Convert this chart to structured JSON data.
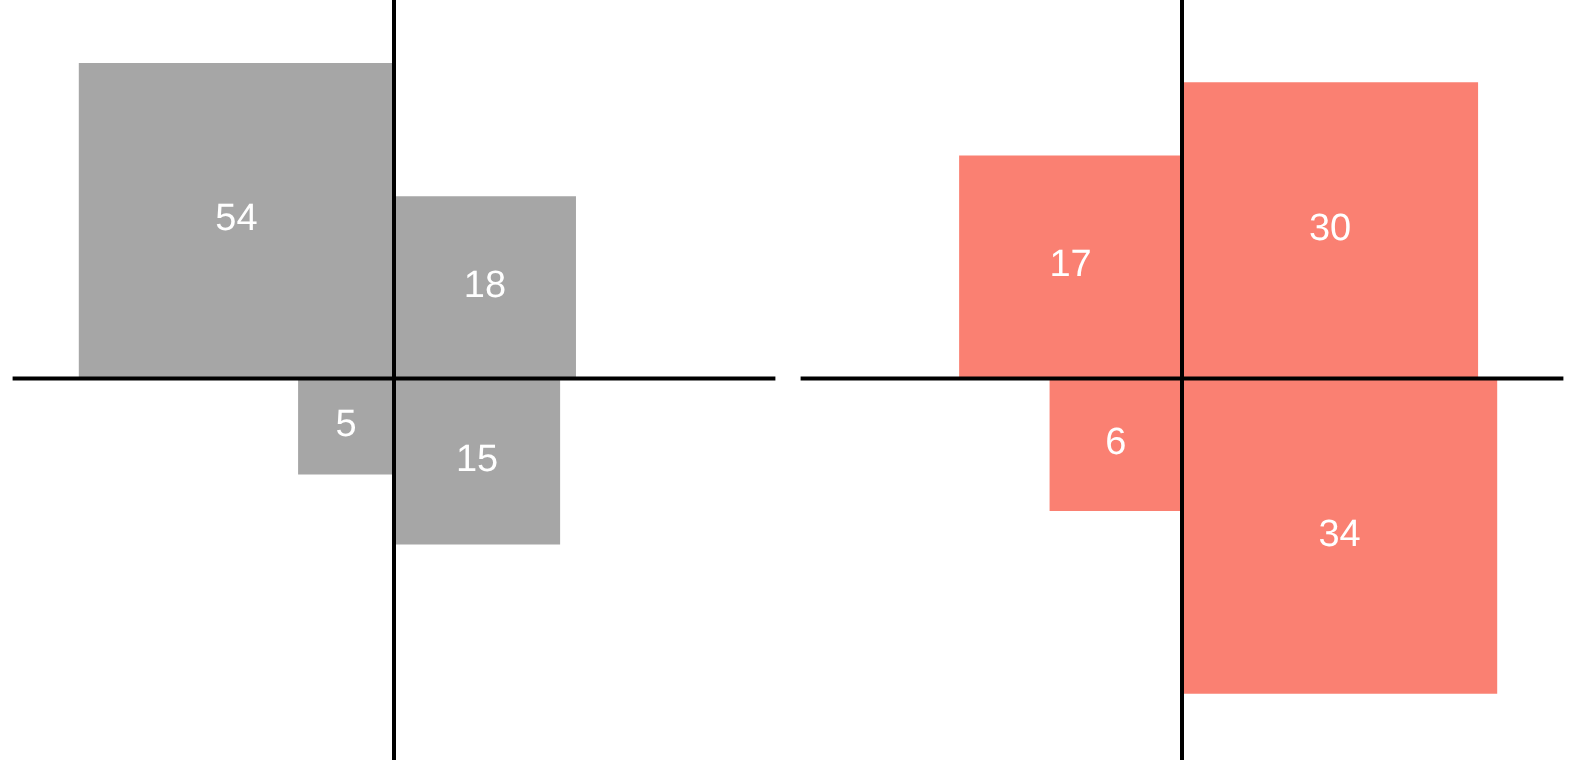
{
  "chart_data": [
    {
      "type": "other",
      "categories": [
        null,
        null,
        null,
        null
      ],
      "values": [
        54,
        18,
        5,
        15
      ],
      "color": "#a6a6a6",
      "data_labels": true
    },
    {
      "type": "other",
      "categories": [
        null,
        null,
        null,
        null
      ],
      "values": [
        17,
        30,
        6,
        34
      ],
      "color": "#fa8072",
      "data_labels": true
    }
  ]
}
